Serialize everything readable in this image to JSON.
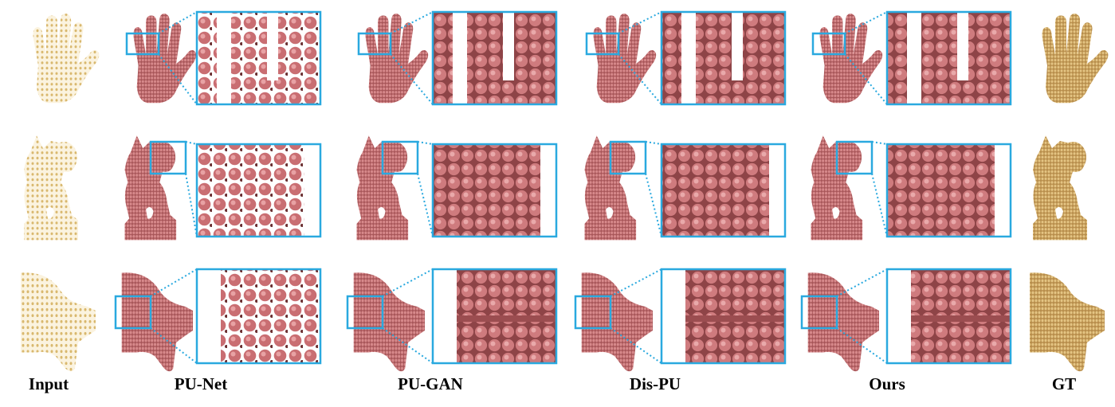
{
  "figure": {
    "column_labels": [
      "Input",
      "PU-Net",
      "PU-GAN",
      "Dis-PU",
      "Ours",
      "GT"
    ]
  },
  "colors": {
    "input_points": "#e0c27f",
    "gt_surface": "#c9a463",
    "pred_points": "#c77174",
    "pred_shadow": "#8f4548",
    "zoom_border": "#2aa9df"
  },
  "rows": [
    "hand",
    "statue",
    "mechanical-part"
  ]
}
